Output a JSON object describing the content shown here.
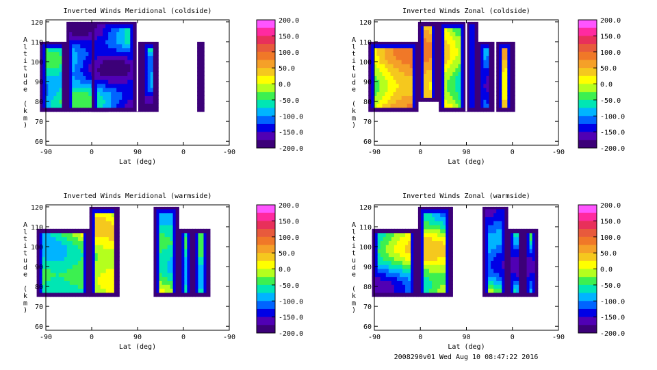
{
  "panels": [
    {
      "title": "Inverted Winds Meridional (coldside)",
      "xlabel": "Lat (deg)",
      "ylabel": "Altitude (km)",
      "shape": "cold_merid",
      "chart_data": {
        "type": "heatmap",
        "title": "Inverted Winds Meridional (coldside)",
        "xlabel": "Lat (deg)",
        "ylabel": "Altitude (km)",
        "x_ticks": [
          "-90",
          "0",
          "90",
          "0",
          "-90"
        ],
        "y_ticks": [
          60,
          70,
          80,
          90,
          100,
          110,
          120
        ],
        "ylim": [
          58,
          121
        ],
        "colorbar_ticks": [
          "200.0",
          "150.0",
          "100.0",
          "50.0",
          "0.0",
          "-50.0",
          "-100.0",
          "-150.0",
          "-200.0"
        ],
        "colorbar_range": [
          -200,
          200
        ]
      }
    },
    {
      "title": "Inverted Winds Zonal (coldside)",
      "xlabel": "Lat (deg)",
      "ylabel": "Altitude (km)",
      "shape": "cold_zonal",
      "chart_data": {
        "type": "heatmap",
        "title": "Inverted Winds Zonal (coldside)",
        "xlabel": "Lat (deg)",
        "ylabel": "Altitude (km)",
        "x_ticks": [
          "-90",
          "0",
          "90",
          "0",
          "-90"
        ],
        "y_ticks": [
          60,
          70,
          80,
          90,
          100,
          110,
          120
        ],
        "ylim": [
          58,
          121
        ],
        "colorbar_ticks": [
          "200.0",
          "150.0",
          "100.0",
          "50.0",
          "0.0",
          "-50.0",
          "-100.0",
          "-150.0",
          "-200.0"
        ],
        "colorbar_range": [
          -200,
          200
        ]
      }
    },
    {
      "title": "Inverted Winds Meridional (warmside)",
      "xlabel": "Lat (deg)",
      "ylabel": "Altitude (km)",
      "shape": "warm_merid",
      "chart_data": {
        "type": "heatmap",
        "title": "Inverted Winds Meridional (warmside)",
        "xlabel": "Lat (deg)",
        "ylabel": "Altitude (km)",
        "x_ticks": [
          "-90",
          "0",
          "90",
          "0",
          "-90"
        ],
        "y_ticks": [
          60,
          70,
          80,
          90,
          100,
          110,
          120
        ],
        "ylim": [
          58,
          121
        ],
        "colorbar_ticks": [
          "200.0",
          "150.0",
          "100.0",
          "50.0",
          "0.0",
          "-50.0",
          "-100.0",
          "-150.0",
          "-200.0"
        ],
        "colorbar_range": [
          -200,
          200
        ]
      }
    },
    {
      "title": "Inverted Winds Zonal (warmside)",
      "xlabel": "Lat (deg)",
      "ylabel": "Altitude (km)",
      "shape": "warm_zonal",
      "chart_data": {
        "type": "heatmap",
        "title": "Inverted Winds Zonal (warmside)",
        "xlabel": "Lat (deg)",
        "ylabel": "Altitude (km)",
        "x_ticks": [
          "-90",
          "0",
          "90",
          "0",
          "-90"
        ],
        "y_ticks": [
          60,
          70,
          80,
          90,
          100,
          110,
          120
        ],
        "ylim": [
          58,
          121
        ],
        "colorbar_ticks": [
          "200.0",
          "150.0",
          "100.0",
          "50.0",
          "0.0",
          "-50.0",
          "-100.0",
          "-150.0",
          "-200.0"
        ],
        "colorbar_range": [
          -200,
          200
        ]
      }
    }
  ],
  "footer": "2008290v01 Wed Aug 10 08:47:22 2016",
  "colorbar_colors": [
    "#ff55ff",
    "#ff2aa0",
    "#e8305a",
    "#e85a3c",
    "#f07828",
    "#f5a028",
    "#f5c81e",
    "#ffff00",
    "#b4ff1e",
    "#3cf050",
    "#00e6b4",
    "#00b4ff",
    "#0064ff",
    "#0000e6",
    "#5000b4",
    "#3c0078"
  ]
}
